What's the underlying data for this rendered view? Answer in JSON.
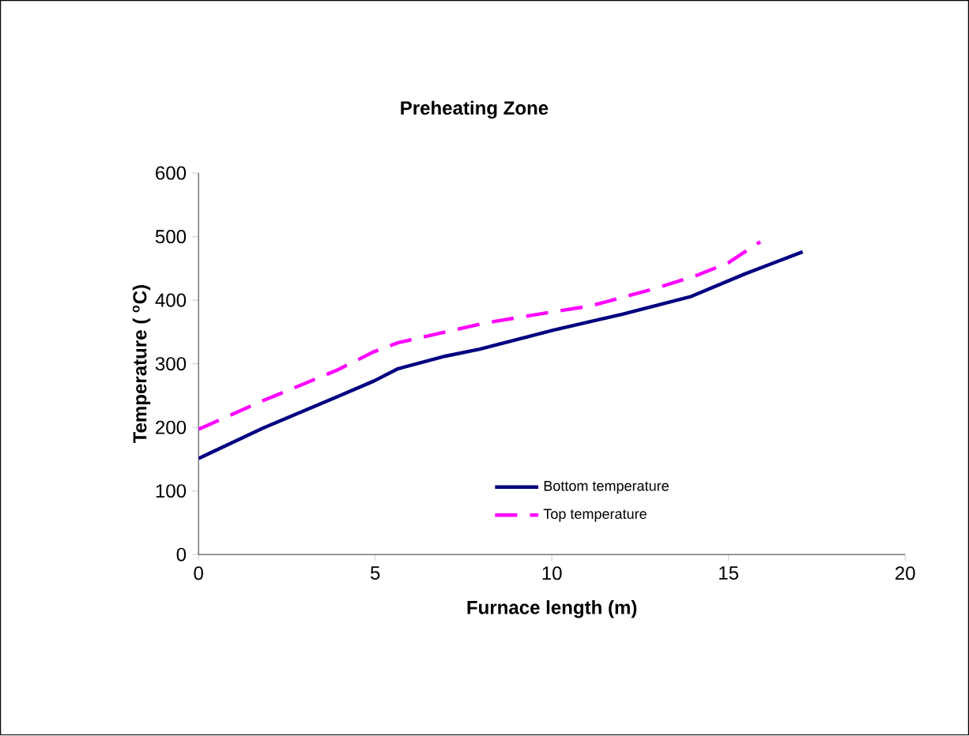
{
  "chart_data": {
    "type": "line",
    "title": "Preheating Zone",
    "xlabel": "Furnace length  (m)",
    "ylabel": "Temperature (  $^{o}$C)",
    "xlim": [
      0,
      20
    ],
    "xticks": [
      0,
      5,
      10,
      15,
      20
    ],
    "ylim": [
      0,
      600
    ],
    "yticks": [
      0,
      100,
      200,
      300,
      400,
      500,
      600
    ],
    "grid": false,
    "legend": "bottom right",
    "marker": "none",
    "series": [
      {
        "name": "Bottom temperature",
        "color": "#000080",
        "line_style": "solid",
        "x": [
          0,
          1.83,
          3.92,
          4.97,
          5.64,
          6.99,
          7.96,
          10.06,
          12.0,
          13.95,
          15.45,
          16.2,
          17.1
        ],
        "values": [
          151,
          199,
          248,
          273,
          292,
          312,
          323,
          353,
          378,
          406,
          441,
          457,
          476
        ]
      },
      {
        "name": "Top temperature",
        "color": "#ff00ff",
        "line_style": "dashed",
        "x": [
          0,
          1.83,
          3.92,
          4.97,
          5.64,
          8.1,
          10.06,
          11.1,
          12.9,
          14.1,
          15.0,
          15.9
        ],
        "values": [
          197,
          242,
          290,
          319,
          333,
          364,
          382,
          391,
          418,
          439,
          459,
          492
        ]
      }
    ]
  }
}
